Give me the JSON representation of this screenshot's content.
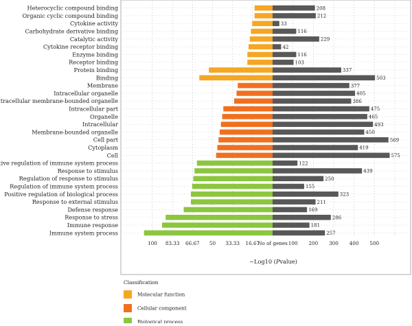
{
  "chart_data": {
    "type": "bar",
    "orientation": "horizontal-diverging",
    "xlabel": "−Log10 (",
    "xlabel_italic": "P",
    "xlabel_suffix": "value)",
    "center_label": "No of genes",
    "left_ticks": [
      "100",
      "83.33",
      "66.67",
      "50",
      "33.33",
      "16.67"
    ],
    "left_ticks_values": [
      100,
      83.33,
      66.67,
      50,
      33.33,
      16.67
    ],
    "right_ticks": [
      "100",
      "200",
      "300",
      "400",
      "500"
    ],
    "right_ticks_values": [
      100,
      200,
      300,
      400,
      500
    ],
    "right_max": 600,
    "left_max": 120,
    "grid": "dotted",
    "legend_title": "Classification",
    "legend_position": "bottom-left",
    "classes": [
      {
        "key": "mf",
        "name": "Molecular function",
        "color": "#f5a623"
      },
      {
        "key": "cc",
        "name": "Cellular component",
        "color": "#f07020"
      },
      {
        "key": "bp",
        "name": "Biological process",
        "color": "#8cc63f"
      }
    ],
    "right_bar_color": "#585858",
    "categories": [
      {
        "label": "Heterocyclic compound binding",
        "cls": "mf",
        "neglog10p": 15,
        "genes": 208
      },
      {
        "label": "Organic cyclic compound binding",
        "cls": "mf",
        "neglog10p": 15,
        "genes": 212
      },
      {
        "label": "Cytokine activity",
        "cls": "mf",
        "neglog10p": 17,
        "genes": 33
      },
      {
        "label": "Carbohydrate derivative binding",
        "cls": "mf",
        "neglog10p": 18,
        "genes": 116
      },
      {
        "label": "Catalytic activity",
        "cls": "mf",
        "neglog10p": 19,
        "genes": 229
      },
      {
        "label": "Cytokine receptor binding",
        "cls": "mf",
        "neglog10p": 20,
        "genes": 42
      },
      {
        "label": "Enzyme binding",
        "cls": "mf",
        "neglog10p": 21,
        "genes": 116
      },
      {
        "label": "Receptor binding",
        "cls": "mf",
        "neglog10p": 21,
        "genes": 103
      },
      {
        "label": "Protein binding",
        "cls": "mf",
        "neglog10p": 53,
        "genes": 337
      },
      {
        "label": "Binding",
        "cls": "mf",
        "neglog10p": 61,
        "genes": 503
      },
      {
        "label": "Membrane",
        "cls": "cc",
        "neglog10p": 29,
        "genes": 377
      },
      {
        "label": "Intracellular organelle",
        "cls": "cc",
        "neglog10p": 30,
        "genes": 405
      },
      {
        "label": "Intracellular membrane-bounded organelle",
        "cls": "cc",
        "neglog10p": 32,
        "genes": 386
      },
      {
        "label": "Intracellular part",
        "cls": "cc",
        "neglog10p": 41,
        "genes": 475
      },
      {
        "label": "Organelle",
        "cls": "cc",
        "neglog10p": 42,
        "genes": 465
      },
      {
        "label": "Intracellular",
        "cls": "cc",
        "neglog10p": 43,
        "genes": 493
      },
      {
        "label": "Membrane-bounded organelle",
        "cls": "cc",
        "neglog10p": 44,
        "genes": 450
      },
      {
        "label": "Cell part",
        "cls": "cc",
        "neglog10p": 45,
        "genes": 569
      },
      {
        "label": "Cytoplasm",
        "cls": "cc",
        "neglog10p": 46,
        "genes": 419
      },
      {
        "label": "Cell",
        "cls": "cc",
        "neglog10p": 47,
        "genes": 575
      },
      {
        "label": "Positive regulation of immune system process",
        "cls": "bp",
        "neglog10p": 63,
        "genes": 122
      },
      {
        "label": "Response to stimulus",
        "cls": "bp",
        "neglog10p": 65,
        "genes": 439
      },
      {
        "label": "Regulation of response to stimulus",
        "cls": "bp",
        "neglog10p": 66,
        "genes": 250
      },
      {
        "label": "Regulation of immune system process",
        "cls": "bp",
        "neglog10p": 67,
        "genes": 155
      },
      {
        "label": "Positive regulation of biological process",
        "cls": "bp",
        "neglog10p": 68,
        "genes": 323
      },
      {
        "label": "Response to external stimulus",
        "cls": "bp",
        "neglog10p": 68,
        "genes": 211
      },
      {
        "label": "Defense response",
        "cls": "bp",
        "neglog10p": 74,
        "genes": 169
      },
      {
        "label": "Response to stress",
        "cls": "bp",
        "neglog10p": 89,
        "genes": 286
      },
      {
        "label": "Immune response",
        "cls": "bp",
        "neglog10p": 92,
        "genes": 181
      },
      {
        "label": "Immune system process",
        "cls": "bp",
        "neglog10p": 107,
        "genes": 257
      }
    ]
  }
}
